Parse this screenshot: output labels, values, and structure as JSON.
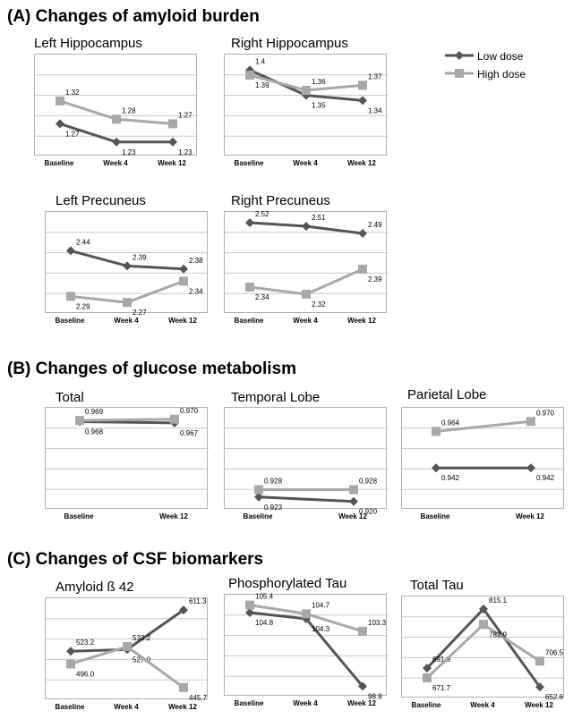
{
  "sections": {
    "a": "(A) Changes of amyloid burden",
    "b": "(B) Changes of glucose metabolism",
    "c": "(C) Changes of CSF biomarkers"
  },
  "legend": {
    "low_dose": "Low dose",
    "high_dose": "High dose",
    "low_color": "#555555",
    "high_color": "#a8a8a8"
  },
  "chart_data": [
    {
      "type": "line",
      "title": "Left Hippocampus",
      "categories": [
        "Baseline",
        "Week 4",
        "Week 12"
      ],
      "series": [
        {
          "name": "Low dose",
          "values": [
            1.27,
            1.23,
            1.23
          ],
          "labels": [
            "1.27",
            "1.23",
            "1.23"
          ]
        },
        {
          "name": "High dose",
          "values": [
            1.32,
            1.28,
            1.27
          ],
          "labels": [
            "1.32",
            "1.28",
            "1.27"
          ]
        }
      ],
      "ylim": [
        1.21,
        1.41
      ]
    },
    {
      "type": "line",
      "title": "Right Hippocampus",
      "categories": [
        "Baseline",
        "Week 4",
        "Week 12"
      ],
      "series": [
        {
          "name": "Low dose",
          "values": [
            1.4,
            1.35,
            1.34
          ],
          "labels": [
            "1.4",
            "1.35",
            "1.34"
          ]
        },
        {
          "name": "High dose",
          "values": [
            1.39,
            1.36,
            1.37
          ],
          "labels": [
            "1.39",
            "1.36",
            "1.37"
          ]
        }
      ],
      "ylim": [
        1.24,
        1.42
      ]
    },
    {
      "type": "line",
      "title": "Left Precuneus",
      "categories": [
        "Baseline",
        "Week 4",
        "Week 12"
      ],
      "series": [
        {
          "name": "Low dose",
          "values": [
            2.44,
            2.39,
            2.38
          ],
          "labels": [
            "2.44",
            "2.39",
            "2.38"
          ]
        },
        {
          "name": "High dose",
          "values": [
            2.29,
            2.27,
            2.34
          ],
          "labels": [
            "2.29",
            "2.27",
            "2.34"
          ]
        }
      ],
      "ylim": [
        2.25,
        2.55
      ]
    },
    {
      "type": "line",
      "title": "Right Precuneus",
      "categories": [
        "Baseline",
        "Week 4",
        "Week 12"
      ],
      "series": [
        {
          "name": "Low dose",
          "values": [
            2.52,
            2.51,
            2.49
          ],
          "labels": [
            "2.52",
            "2.51",
            "2.49"
          ]
        },
        {
          "name": "High dose",
          "values": [
            2.34,
            2.32,
            2.39
          ],
          "labels": [
            "2.34",
            "2.32",
            "2.39"
          ]
        }
      ],
      "ylim": [
        2.28,
        2.535
      ]
    },
    {
      "type": "line",
      "title": "Total",
      "categories": [
        "Baseline",
        "Week 12"
      ],
      "series": [
        {
          "name": "Low dose",
          "values": [
            0.968,
            0.967
          ],
          "labels": [
            "0.968",
            "0.967"
          ]
        },
        {
          "name": "High dose",
          "values": [
            0.969,
            0.97
          ],
          "labels": [
            "0.969",
            "0.970"
          ]
        }
      ],
      "ylim": [
        0.9,
        0.975
      ]
    },
    {
      "type": "line",
      "title": "Temporal Lobe",
      "categories": [
        "Baseline",
        "Week 12"
      ],
      "series": [
        {
          "name": "Low dose",
          "values": [
            0.923,
            0.92
          ],
          "labels": [
            "0.923",
            "0.920"
          ]
        },
        {
          "name": "High dose",
          "values": [
            0.928,
            0.928
          ],
          "labels": [
            "0.928",
            "0.928"
          ]
        }
      ],
      "ylim": [
        0.918,
        0.98
      ]
    },
    {
      "type": "line",
      "title": "Parietal Lobe",
      "categories": [
        "Baseline",
        "Week 12"
      ],
      "series": [
        {
          "name": "Low dose",
          "values": [
            0.942,
            0.942
          ],
          "labels": [
            "0.942",
            "0.942"
          ]
        },
        {
          "name": "High dose",
          "values": [
            0.964,
            0.97
          ],
          "labels": [
            "0.964",
            "0.970"
          ]
        }
      ],
      "ylim": [
        0.92,
        0.975
      ]
    },
    {
      "type": "line",
      "title": "Amyloid ß 42",
      "categories": [
        "Baseline",
        "Week 4",
        "Week 12"
      ],
      "series": [
        {
          "name": "Low dose",
          "values": [
            523.2,
            527.0,
            611.3
          ],
          "labels": [
            "523.2",
            "527.0",
            "611.3"
          ]
        },
        {
          "name": "High dose",
          "values": [
            496.0,
            533.2,
            445.7
          ],
          "labels": [
            "496.0",
            "533.2",
            "445.7"
          ]
        }
      ],
      "ylim": [
        430,
        625
      ]
    },
    {
      "type": "line",
      "title": "Phosphorylated Tau",
      "categories": [
        "Baseline",
        "Week 4",
        "Week 12"
      ],
      "series": [
        {
          "name": "Low dose",
          "values": [
            104.8,
            104.3,
            98.9
          ],
          "labels": [
            "104.8",
            "104.3",
            "98.9"
          ]
        },
        {
          "name": "High dose",
          "values": [
            105.4,
            104.7,
            103.3
          ],
          "labels": [
            "105.4",
            "104.7",
            "103.3"
          ]
        }
      ],
      "ylim": [
        98.5,
        105.8
      ]
    },
    {
      "type": "line",
      "title": "Total Tau",
      "categories": [
        "Baseline",
        "Week 4",
        "Week 12"
      ],
      "series": [
        {
          "name": "Low dose",
          "values": [
            691.9,
            815.1,
            652.6
          ],
          "labels": [
            "691.9",
            "815.1",
            "652.6"
          ]
        },
        {
          "name": "High dose",
          "values": [
            671.7,
            782.9,
            706.5
          ],
          "labels": [
            "671.7",
            "782.9",
            "706.5"
          ]
        }
      ],
      "ylim": [
        640,
        830
      ]
    }
  ]
}
